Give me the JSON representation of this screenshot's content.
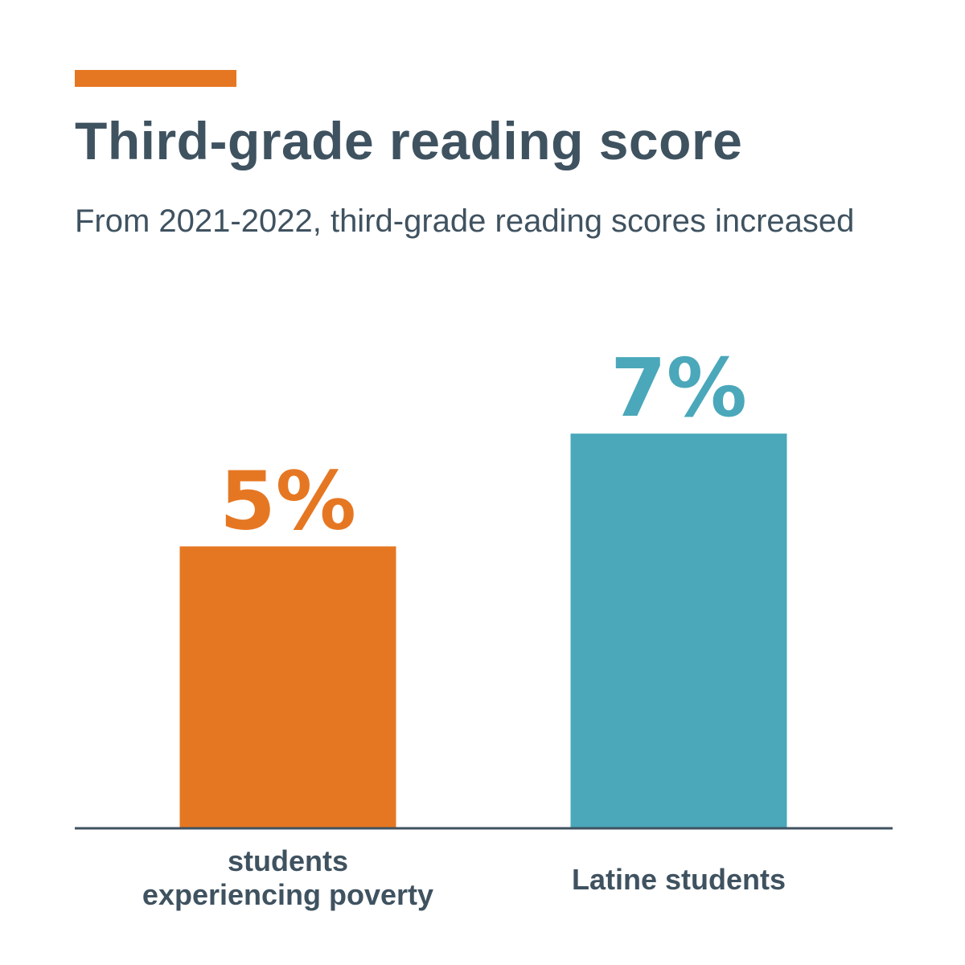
{
  "accent_color": "#e67722",
  "text_color": "#3f5260",
  "chart_data": {
    "type": "bar",
    "title": "Third-grade reading score",
    "subtitle": "From 2021-2022, third-grade reading scores increased",
    "categories": [
      "students experiencing poverty",
      "Latine students"
    ],
    "category_lines": [
      [
        "students",
        "experiencing poverty"
      ],
      [
        "Latine students"
      ]
    ],
    "values": [
      5,
      7
    ],
    "value_labels": [
      "5%",
      "7%"
    ],
    "colors": [
      "#e67722",
      "#4aa8ba"
    ],
    "ylim": [
      0,
      8.7
    ],
    "grid": false,
    "legend": "none"
  }
}
